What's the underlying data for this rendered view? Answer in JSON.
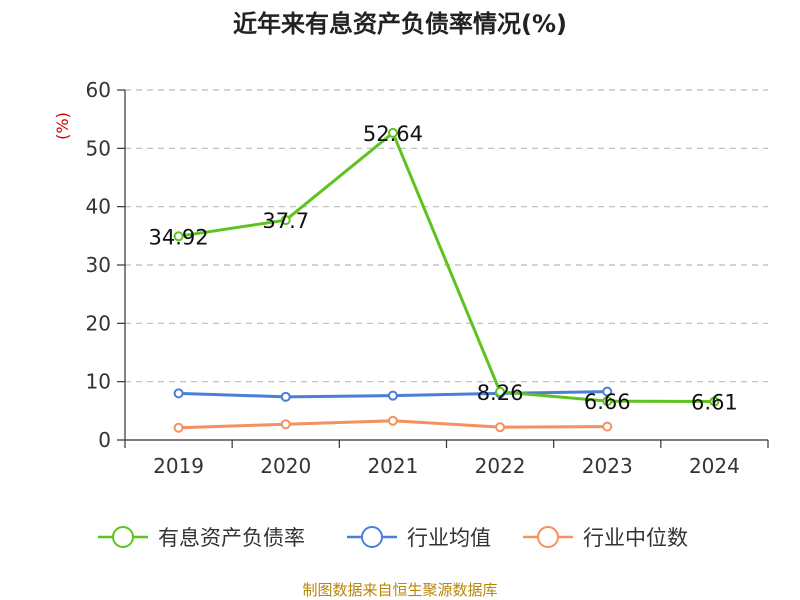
{
  "chart_data": {
    "type": "line",
    "title": "近年来有息资产负债率情况(%)",
    "ylabel": "(%)",
    "xlabel": "",
    "categories": [
      "2019",
      "2020",
      "2021",
      "2022",
      "2023",
      "2024"
    ],
    "ylim": [
      0,
      60
    ],
    "yticks": [
      0,
      10,
      20,
      30,
      40,
      50,
      60
    ],
    "grid": true,
    "legend_position": "bottom",
    "series": [
      {
        "name": "有息资产负债率",
        "color": "#5ec31e",
        "values": [
          34.92,
          37.7,
          52.64,
          8.26,
          6.66,
          6.61
        ],
        "labels": [
          "34.92",
          "37.7",
          "52.64",
          "8.26",
          "6.66",
          "6.61"
        ]
      },
      {
        "name": "行业均值",
        "color": "#4a7fd8",
        "values": [
          8.0,
          7.4,
          7.6,
          8.0,
          8.3,
          null
        ]
      },
      {
        "name": "行业中位数",
        "color": "#f4915e",
        "values": [
          2.1,
          2.7,
          3.3,
          2.2,
          2.3,
          null
        ]
      }
    ]
  },
  "footer": {
    "source": "制图数据来自恒生聚源数据库"
  }
}
